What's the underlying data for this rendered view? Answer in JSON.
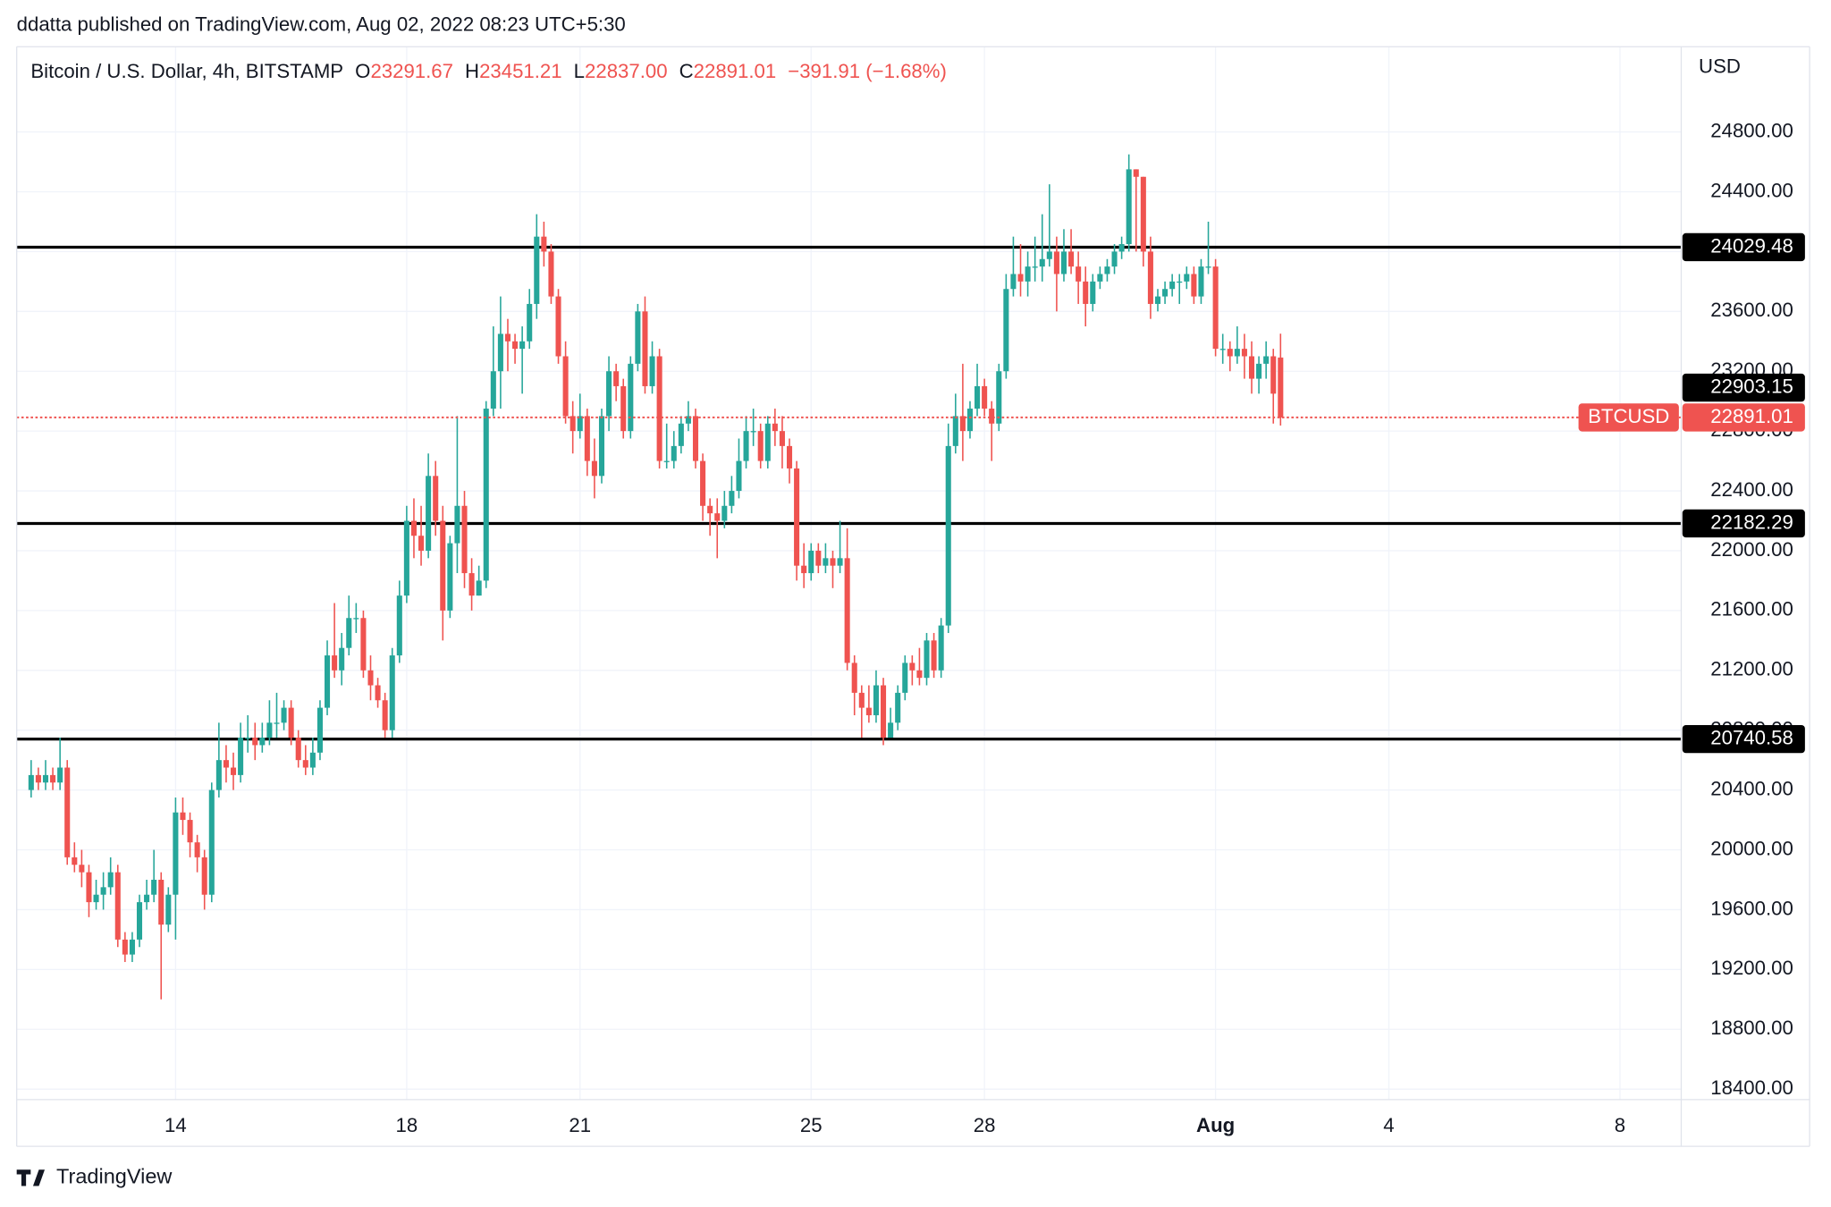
{
  "chart_data": {
    "type": "candlestick",
    "header": "ddatta published on TradingView.com, Aug 02, 2022 08:23 UTC+5:30",
    "title": "Bitcoin / U.S. Dollar, 4h, BITSTAMP",
    "legend_stats": [
      {
        "key": "O",
        "value": "23291.67"
      },
      {
        "key": "H",
        "value": "23451.21"
      },
      {
        "key": "L",
        "value": "22837.00"
      },
      {
        "key": "C",
        "value": "22891.01"
      }
    ],
    "change": "−391.91 (−1.68%)",
    "y_axis_label": "USD",
    "footer": "TradingView",
    "series_name": "BTCUSD",
    "up_color": "#26a69a",
    "down_color": "#ef5350",
    "grid": true,
    "xlim": [
      11.25,
      40.06
    ],
    "ylim": [
      18330,
      25370
    ],
    "xticks": [
      14,
      18,
      21,
      25,
      28,
      {
        "value": 32,
        "label": "Aug"
      },
      {
        "value": 35,
        "label": "4"
      },
      {
        "value": 39,
        "label": "8"
      }
    ],
    "yticks": [
      {
        "value": 18400,
        "label": "18400.00"
      },
      {
        "value": 18800,
        "label": "18800.00"
      },
      {
        "value": 19200,
        "label": "19200.00"
      },
      {
        "value": 19600,
        "label": "19600.00"
      },
      {
        "value": 20000,
        "label": "20000.00"
      },
      {
        "value": 20400,
        "label": "20400.00"
      },
      {
        "value": 20800,
        "label": "20800.00"
      },
      {
        "value": 21200,
        "label": "21200.00"
      },
      {
        "value": 21600,
        "label": "21600.00"
      },
      {
        "value": 22000,
        "label": "22000.00"
      },
      {
        "value": 22400,
        "label": "22400.00"
      },
      {
        "value": 22800,
        "label": "22800.00"
      },
      {
        "value": 23200,
        "label": "23200.00"
      },
      {
        "value": 23600,
        "label": "23600.00"
      },
      {
        "value": 24000,
        "label": "24000.00"
      },
      {
        "value": 24400,
        "label": "24400.00"
      },
      {
        "value": 24800,
        "label": "24800.00"
      }
    ],
    "levels": [
      24029.48,
      22903.15,
      22182.29,
      20740.58
    ],
    "x": [
      11.5,
      11.625,
      11.75,
      11.875,
      12,
      12.125,
      12.25,
      12.375,
      12.5,
      12.625,
      12.75,
      12.875,
      13,
      13.125,
      13.25,
      13.375,
      13.5,
      13.625,
      13.75,
      13.875,
      14,
      14.125,
      14.25,
      14.375,
      14.5,
      14.625,
      14.75,
      14.875,
      15,
      15.125,
      15.25,
      15.375,
      15.5,
      15.625,
      15.75,
      15.875,
      16,
      16.125,
      16.25,
      16.375,
      16.5,
      16.625,
      16.75,
      16.875,
      17,
      17.125,
      17.25,
      17.375,
      17.5,
      17.625,
      17.75,
      17.875,
      18,
      18.125,
      18.25,
      18.375,
      18.5,
      18.625,
      18.75,
      18.875,
      19,
      19.125,
      19.25,
      19.375,
      19.5,
      19.625,
      19.75,
      19.875,
      20,
      20.125,
      20.25,
      20.375,
      20.5,
      20.625,
      20.75,
      20.875,
      21,
      21.125,
      21.25,
      21.375,
      21.5,
      21.625,
      21.75,
      21.875,
      22,
      22.125,
      22.25,
      22.375,
      22.5,
      22.625,
      22.75,
      22.875,
      23,
      23.125,
      23.25,
      23.375,
      23.5,
      23.625,
      23.75,
      23.875,
      24,
      24.125,
      24.25,
      24.375,
      24.5,
      24.625,
      24.75,
      24.875,
      25,
      25.125,
      25.25,
      25.375,
      25.5,
      25.625,
      25.75,
      25.875,
      26,
      26.125,
      26.25,
      26.375,
      26.5,
      26.625,
      26.75,
      26.875,
      27,
      27.125,
      27.25,
      27.375,
      27.5,
      27.625,
      27.75,
      27.875,
      28,
      28.125,
      28.25,
      28.375,
      28.5,
      28.625,
      28.75,
      28.875,
      29,
      29.125,
      29.25,
      29.375,
      29.5,
      29.625,
      29.75,
      29.875,
      30,
      30.125,
      30.25,
      30.375,
      30.5,
      30.625,
      30.75,
      30.875,
      31,
      31.125,
      31.25,
      31.375,
      31.5,
      31.625,
      31.75,
      31.875,
      32,
      32.125,
      32.25,
      32.375,
      32.5,
      32.625,
      32.75,
      32.875,
      33,
      33.125
    ],
    "open": [
      20400,
      20500,
      20450,
      20500,
      20450,
      20550,
      19950,
      19900,
      19850,
      19650,
      19700,
      19750,
      19850,
      19400,
      19300,
      19400,
      19650,
      19700,
      19800,
      19500,
      19700,
      20250,
      20200,
      20050,
      19950,
      19700,
      20400,
      20600,
      20550,
      20500,
      20750,
      20750,
      20700,
      20750,
      20850,
      20850,
      20950,
      20750,
      20600,
      20550,
      20650,
      20950,
      21300,
      21200,
      21350,
      21550,
      21550,
      21200,
      21100,
      21000,
      20800,
      21300,
      21700,
      22200,
      22100,
      22000,
      22500,
      22200,
      21600,
      22050,
      22300,
      21850,
      21700,
      21800,
      22950,
      23200,
      23450,
      23400,
      23350,
      23400,
      23650,
      24100,
      24000,
      23700,
      23300,
      22900,
      22800,
      22900,
      22600,
      22500,
      22900,
      23200,
      23100,
      22800,
      23250,
      23600,
      23100,
      23300,
      22600,
      22600,
      22700,
      22850,
      22900,
      22600,
      22300,
      22250,
      22200,
      22300,
      22400,
      22600,
      22800,
      22800,
      22600,
      22850,
      22800,
      22700,
      22550,
      21900,
      21850,
      22000,
      21900,
      21950,
      21900,
      21950,
      21250,
      21050,
      20950,
      20900,
      21100,
      20750,
      20850,
      21050,
      21250,
      21200,
      21150,
      21400,
      21200,
      21500,
      22700,
      22900,
      22800,
      22950,
      23100,
      22950,
      22850,
      23200,
      23750,
      23850,
      23800,
      23900,
      23900,
      23950,
      24000,
      23850,
      24000,
      23900,
      23800,
      23650,
      23800,
      23850,
      23900,
      24000,
      24050,
      24550,
      24500,
      24000,
      23650,
      23700,
      23750,
      23800,
      23800,
      23850,
      23700,
      23900,
      23900,
      23350,
      23350,
      23300,
      23350,
      23300,
      23150,
      23250,
      23300,
      23291.67
    ],
    "high": [
      20600,
      20550,
      20600,
      20550,
      20750,
      20600,
      20050,
      20000,
      19900,
      19800,
      19850,
      19950,
      19900,
      19450,
      19450,
      19700,
      19800,
      20000,
      19850,
      19750,
      20350,
      20350,
      20250,
      20100,
      20000,
      20450,
      20850,
      20700,
      20650,
      20850,
      20900,
      20850,
      20850,
      21000,
      21050,
      21000,
      21000,
      20800,
      20700,
      20750,
      21000,
      21400,
      21650,
      21450,
      21700,
      21650,
      21600,
      21300,
      21150,
      21050,
      21350,
      21800,
      22300,
      22350,
      22300,
      22650,
      22600,
      22300,
      22100,
      22900,
      22400,
      21950,
      21900,
      23000,
      23500,
      23700,
      23550,
      23450,
      23500,
      23750,
      24250,
      24200,
      24050,
      23750,
      23400,
      23000,
      23050,
      22950,
      22750,
      22950,
      23300,
      23250,
      23150,
      23300,
      23650,
      23700,
      23400,
      23350,
      22850,
      22800,
      22900,
      23000,
      22950,
      22650,
      22350,
      22350,
      22400,
      22500,
      22750,
      22900,
      22950,
      22850,
      22900,
      22950,
      22900,
      22750,
      22600,
      22050,
      22050,
      22050,
      22050,
      22000,
      22200,
      22150,
      21300,
      21100,
      21100,
      21200,
      21150,
      20950,
      21100,
      21300,
      21300,
      21350,
      21450,
      21450,
      21550,
      22850,
      23050,
      23250,
      23000,
      23250,
      23150,
      23000,
      23250,
      23850,
      24100,
      24050,
      24000,
      24100,
      24250,
      24450,
      24100,
      24150,
      24150,
      24000,
      23900,
      23850,
      23900,
      23950,
      24050,
      24100,
      24650,
      24550,
      24500,
      24100,
      23750,
      23800,
      23850,
      23850,
      23900,
      23900,
      23950,
      24200,
      23950,
      23450,
      23400,
      23500,
      23450,
      23400,
      23300,
      23400,
      23350,
      23451.21
    ],
    "low": [
      20350,
      20400,
      20400,
      20400,
      20400,
      19900,
      19850,
      19750,
      19550,
      19600,
      19600,
      19700,
      19350,
      19250,
      19250,
      19350,
      19600,
      19650,
      19000,
      19450,
      19400,
      20100,
      19950,
      19850,
      19600,
      19650,
      20350,
      20450,
      20400,
      20450,
      20650,
      20600,
      20650,
      20700,
      20750,
      20800,
      20700,
      20550,
      20500,
      20500,
      20600,
      20900,
      21150,
      21100,
      21300,
      21450,
      21150,
      21000,
      20950,
      20750,
      20750,
      21250,
      21650,
      21950,
      21900,
      21950,
      22100,
      21400,
      21550,
      21850,
      21750,
      21600,
      21700,
      21750,
      22900,
      22950,
      23200,
      23250,
      23050,
      23350,
      23550,
      23900,
      23650,
      23250,
      22850,
      22650,
      22750,
      22500,
      22350,
      22450,
      22800,
      23000,
      22750,
      22750,
      23200,
      23050,
      23050,
      22550,
      22550,
      22550,
      22650,
      22800,
      22550,
      22200,
      22100,
      21950,
      22150,
      22250,
      22350,
      22550,
      22700,
      22550,
      22550,
      22700,
      22550,
      22450,
      21800,
      21750,
      21800,
      21850,
      21850,
      21750,
      21850,
      21200,
      20900,
      20750,
      20850,
      20850,
      20700,
      20750,
      20800,
      21000,
      21100,
      21100,
      21100,
      21150,
      21150,
      21450,
      22650,
      22600,
      22750,
      22900,
      22900,
      22600,
      22800,
      23150,
      23700,
      23700,
      23700,
      23800,
      23800,
      23900,
      23600,
      23800,
      23850,
      23650,
      23500,
      23600,
      23750,
      23800,
      23850,
      23950,
      24000,
      24000,
      23900,
      23550,
      23600,
      23650,
      23700,
      23650,
      23750,
      23650,
      23650,
      23850,
      23300,
      23250,
      23200,
      23250,
      23150,
      23050,
      23050,
      23150,
      22850,
      22837
    ],
    "close": [
      20500,
      20450,
      20500,
      20450,
      20550,
      19950,
      19900,
      19850,
      19650,
      19700,
      19750,
      19850,
      19400,
      19300,
      19400,
      19650,
      19700,
      19800,
      19500,
      19700,
      20250,
      20200,
      20050,
      19950,
      19700,
      20400,
      20600,
      20550,
      20500,
      20750,
      20750,
      20700,
      20750,
      20850,
      20850,
      20950,
      20750,
      20600,
      20550,
      20650,
      20950,
      21300,
      21200,
      21350,
      21550,
      21550,
      21200,
      21100,
      21000,
      20800,
      21300,
      21700,
      22200,
      22100,
      22000,
      22500,
      22200,
      21600,
      22050,
      22300,
      21850,
      21700,
      21800,
      22950,
      23200,
      23450,
      23400,
      23350,
      23400,
      23650,
      24100,
      24000,
      23700,
      23300,
      22900,
      22800,
      22900,
      22600,
      22500,
      22900,
      23200,
      23100,
      22800,
      23250,
      23600,
      23100,
      23300,
      22600,
      22600,
      22700,
      22850,
      22900,
      22600,
      22300,
      22250,
      22200,
      22300,
      22400,
      22600,
      22800,
      22800,
      22600,
      22850,
      22800,
      22700,
      22550,
      21900,
      21850,
      22000,
      21900,
      21950,
      21900,
      21950,
      21250,
      21050,
      20950,
      20900,
      21100,
      20750,
      20850,
      21050,
      21250,
      21200,
      21150,
      21400,
      21200,
      21500,
      22700,
      22900,
      22800,
      22950,
      23100,
      22950,
      22850,
      23200,
      23750,
      23850,
      23800,
      23900,
      23900,
      23950,
      24000,
      23850,
      24000,
      23900,
      23800,
      23650,
      23800,
      23850,
      23900,
      24000,
      24050,
      24550,
      24500,
      24000,
      23650,
      23700,
      23750,
      23800,
      23800,
      23850,
      23700,
      23900,
      23900,
      23350,
      23350,
      23300,
      23350,
      23300,
      23150,
      23250,
      23300,
      23050,
      22891.01
    ]
  }
}
